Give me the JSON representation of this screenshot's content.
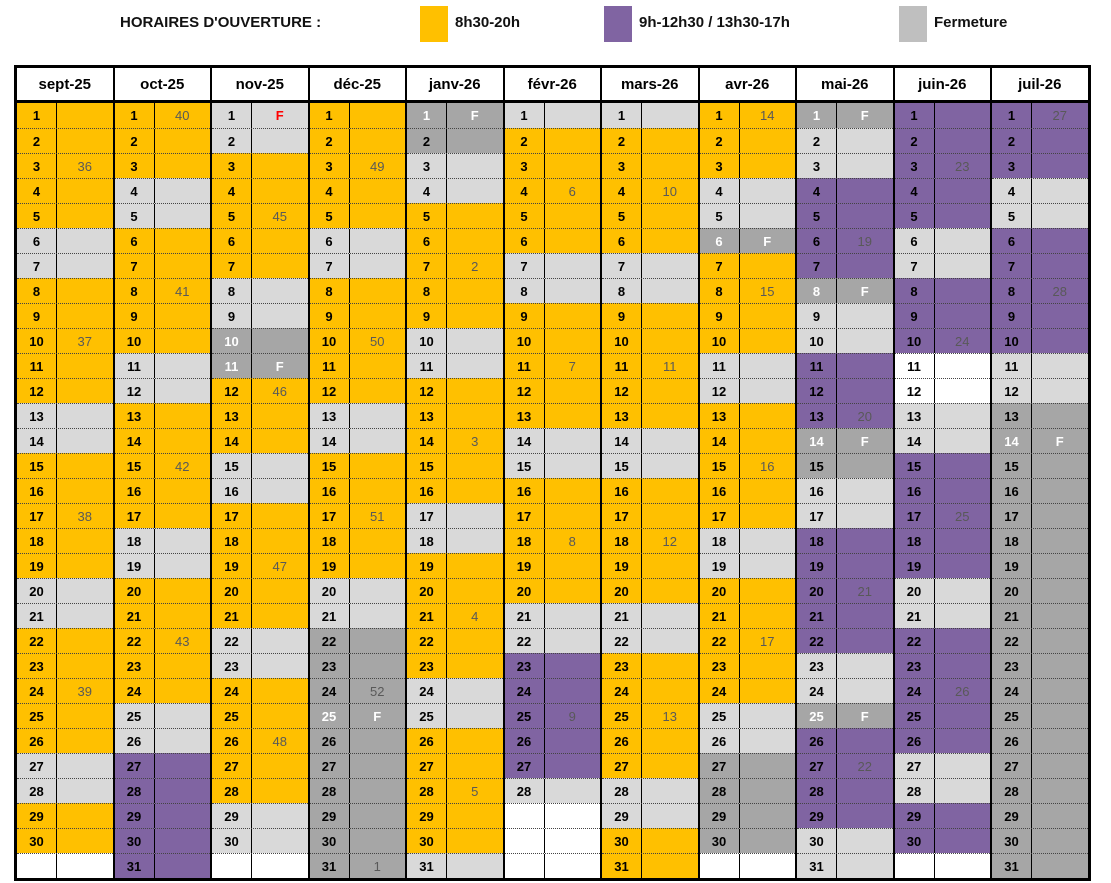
{
  "legend": {
    "title": "HORAIRES D'OUVERTURE :",
    "items": [
      {
        "label": "8h30-20h",
        "color_key": "open_full"
      },
      {
        "label": "9h-12h30 / 13h30-17h",
        "color_key": "open_reduced"
      },
      {
        "label": "Fermeture",
        "color_key": "closed"
      }
    ]
  },
  "colors": {
    "open_full": "#FFC000",
    "open_reduced": "#8064A2",
    "closed_weekend": "#D9D9D9",
    "closed_dark": "#A6A6A6",
    "empty": "#FFFFFF",
    "holiday_red": "#FF0000",
    "note_gray": "#595959",
    "white_text": "#FFFFFF",
    "black_text": "#000000"
  },
  "bg_map": {
    "o": "#FFC000",
    "p": "#8064A2",
    "g": "#D9D9D9",
    "G": "#A6A6A6",
    "w": "#FFFFFF"
  },
  "months": [
    {
      "label": "sept-25",
      "days": [
        [
          1,
          "o"
        ],
        [
          2,
          "o"
        ],
        [
          3,
          "o",
          "36"
        ],
        [
          4,
          "o"
        ],
        [
          5,
          "o"
        ],
        [
          6,
          "g"
        ],
        [
          7,
          "g"
        ],
        [
          8,
          "o"
        ],
        [
          9,
          "o"
        ],
        [
          10,
          "o",
          "37"
        ],
        [
          11,
          "o"
        ],
        [
          12,
          "o"
        ],
        [
          13,
          "g"
        ],
        [
          14,
          "g"
        ],
        [
          15,
          "o"
        ],
        [
          16,
          "o"
        ],
        [
          17,
          "o",
          "38"
        ],
        [
          18,
          "o"
        ],
        [
          19,
          "o"
        ],
        [
          20,
          "g"
        ],
        [
          21,
          "g"
        ],
        [
          22,
          "o"
        ],
        [
          23,
          "o"
        ],
        [
          24,
          "o",
          "39"
        ],
        [
          25,
          "o"
        ],
        [
          26,
          "o"
        ],
        [
          27,
          "g"
        ],
        [
          28,
          "g"
        ],
        [
          29,
          "o"
        ],
        [
          30,
          "o"
        ],
        [
          "",
          "w"
        ]
      ]
    },
    {
      "label": "oct-25",
      "days": [
        [
          1,
          "o",
          "40"
        ],
        [
          2,
          "o"
        ],
        [
          3,
          "o"
        ],
        [
          4,
          "g"
        ],
        [
          5,
          "g"
        ],
        [
          6,
          "o"
        ],
        [
          7,
          "o"
        ],
        [
          8,
          "o",
          "41"
        ],
        [
          9,
          "o"
        ],
        [
          10,
          "o"
        ],
        [
          11,
          "g"
        ],
        [
          12,
          "g"
        ],
        [
          13,
          "o"
        ],
        [
          14,
          "o"
        ],
        [
          15,
          "o",
          "42"
        ],
        [
          16,
          "o"
        ],
        [
          17,
          "o"
        ],
        [
          18,
          "g"
        ],
        [
          19,
          "g"
        ],
        [
          20,
          "o"
        ],
        [
          21,
          "o"
        ],
        [
          22,
          "o",
          "43"
        ],
        [
          23,
          "o"
        ],
        [
          24,
          "o"
        ],
        [
          25,
          "g"
        ],
        [
          26,
          "g"
        ],
        [
          27,
          "p"
        ],
        [
          28,
          "p"
        ],
        [
          29,
          "p"
        ],
        [
          30,
          "p"
        ],
        [
          31,
          "p"
        ]
      ]
    },
    {
      "label": "nov-25",
      "days": [
        [
          1,
          "g",
          "F",
          "rf"
        ],
        [
          2,
          "g"
        ],
        [
          3,
          "o"
        ],
        [
          4,
          "o"
        ],
        [
          5,
          "o",
          "45"
        ],
        [
          6,
          "o"
        ],
        [
          7,
          "o"
        ],
        [
          8,
          "g"
        ],
        [
          9,
          "g"
        ],
        [
          10,
          "G",
          "",
          "wf"
        ],
        [
          11,
          "G",
          "F",
          "wf"
        ],
        [
          12,
          "o",
          "46"
        ],
        [
          13,
          "o"
        ],
        [
          14,
          "o"
        ],
        [
          15,
          "g"
        ],
        [
          16,
          "g"
        ],
        [
          17,
          "o"
        ],
        [
          18,
          "o"
        ],
        [
          19,
          "o",
          "47"
        ],
        [
          20,
          "o"
        ],
        [
          21,
          "o"
        ],
        [
          22,
          "g"
        ],
        [
          23,
          "g"
        ],
        [
          24,
          "o"
        ],
        [
          25,
          "o"
        ],
        [
          26,
          "o",
          "48"
        ],
        [
          27,
          "o"
        ],
        [
          28,
          "o"
        ],
        [
          29,
          "g"
        ],
        [
          30,
          "g"
        ],
        [
          "",
          "w"
        ]
      ]
    },
    {
      "label": "déc-25",
      "days": [
        [
          1,
          "o"
        ],
        [
          2,
          "o"
        ],
        [
          3,
          "o",
          "49"
        ],
        [
          4,
          "o"
        ],
        [
          5,
          "o"
        ],
        [
          6,
          "g"
        ],
        [
          7,
          "g"
        ],
        [
          8,
          "o"
        ],
        [
          9,
          "o"
        ],
        [
          10,
          "o",
          "50"
        ],
        [
          11,
          "o"
        ],
        [
          12,
          "o"
        ],
        [
          13,
          "g"
        ],
        [
          14,
          "g"
        ],
        [
          15,
          "o"
        ],
        [
          16,
          "o"
        ],
        [
          17,
          "o",
          "51"
        ],
        [
          18,
          "o"
        ],
        [
          19,
          "o"
        ],
        [
          20,
          "g"
        ],
        [
          21,
          "g"
        ],
        [
          22,
          "G"
        ],
        [
          23,
          "G"
        ],
        [
          24,
          "G",
          "52"
        ],
        [
          25,
          "G",
          "F",
          "wf"
        ],
        [
          26,
          "G"
        ],
        [
          27,
          "G"
        ],
        [
          28,
          "G"
        ],
        [
          29,
          "G"
        ],
        [
          30,
          "G"
        ],
        [
          31,
          "G",
          "1"
        ]
      ]
    },
    {
      "label": "janv-26",
      "days": [
        [
          1,
          "G",
          "F",
          "wf"
        ],
        [
          2,
          "G"
        ],
        [
          3,
          "g"
        ],
        [
          4,
          "g"
        ],
        [
          5,
          "o"
        ],
        [
          6,
          "o"
        ],
        [
          7,
          "o",
          "2"
        ],
        [
          8,
          "o"
        ],
        [
          9,
          "o"
        ],
        [
          10,
          "g"
        ],
        [
          11,
          "g"
        ],
        [
          12,
          "o"
        ],
        [
          13,
          "o"
        ],
        [
          14,
          "o",
          "3"
        ],
        [
          15,
          "o"
        ],
        [
          16,
          "o"
        ],
        [
          17,
          "g"
        ],
        [
          18,
          "g"
        ],
        [
          19,
          "o"
        ],
        [
          20,
          "o"
        ],
        [
          21,
          "o",
          "4"
        ],
        [
          22,
          "o"
        ],
        [
          23,
          "o"
        ],
        [
          24,
          "g"
        ],
        [
          25,
          "g"
        ],
        [
          26,
          "o"
        ],
        [
          27,
          "o"
        ],
        [
          28,
          "o",
          "5"
        ],
        [
          29,
          "o"
        ],
        [
          30,
          "o"
        ],
        [
          31,
          "g"
        ]
      ]
    },
    {
      "label": "févr-26",
      "days": [
        [
          1,
          "g"
        ],
        [
          2,
          "o"
        ],
        [
          3,
          "o"
        ],
        [
          4,
          "o",
          "6"
        ],
        [
          5,
          "o"
        ],
        [
          6,
          "o"
        ],
        [
          7,
          "g"
        ],
        [
          8,
          "g"
        ],
        [
          9,
          "o"
        ],
        [
          10,
          "o"
        ],
        [
          11,
          "o",
          "7"
        ],
        [
          12,
          "o"
        ],
        [
          13,
          "o"
        ],
        [
          14,
          "g"
        ],
        [
          15,
          "g"
        ],
        [
          16,
          "o"
        ],
        [
          17,
          "o"
        ],
        [
          18,
          "o",
          "8"
        ],
        [
          19,
          "o"
        ],
        [
          20,
          "o"
        ],
        [
          21,
          "g"
        ],
        [
          22,
          "g"
        ],
        [
          23,
          "p"
        ],
        [
          24,
          "p"
        ],
        [
          25,
          "p",
          "9"
        ],
        [
          26,
          "p"
        ],
        [
          27,
          "p"
        ],
        [
          28,
          "g"
        ],
        [
          "",
          "w"
        ],
        [
          "",
          "w"
        ],
        [
          "",
          "w"
        ]
      ]
    },
    {
      "label": "mars-26",
      "days": [
        [
          1,
          "g"
        ],
        [
          2,
          "o"
        ],
        [
          3,
          "o"
        ],
        [
          4,
          "o",
          "10"
        ],
        [
          5,
          "o"
        ],
        [
          6,
          "o"
        ],
        [
          7,
          "g"
        ],
        [
          8,
          "g"
        ],
        [
          9,
          "o"
        ],
        [
          10,
          "o"
        ],
        [
          11,
          "o",
          "11"
        ],
        [
          12,
          "o"
        ],
        [
          13,
          "o"
        ],
        [
          14,
          "g"
        ],
        [
          15,
          "g"
        ],
        [
          16,
          "o"
        ],
        [
          17,
          "o"
        ],
        [
          18,
          "o",
          "12"
        ],
        [
          19,
          "o"
        ],
        [
          20,
          "o"
        ],
        [
          21,
          "g"
        ],
        [
          22,
          "g"
        ],
        [
          23,
          "o"
        ],
        [
          24,
          "o"
        ],
        [
          25,
          "o",
          "13"
        ],
        [
          26,
          "o"
        ],
        [
          27,
          "o"
        ],
        [
          28,
          "g"
        ],
        [
          29,
          "g"
        ],
        [
          30,
          "o"
        ],
        [
          31,
          "o"
        ]
      ]
    },
    {
      "label": "avr-26",
      "days": [
        [
          1,
          "o",
          "14"
        ],
        [
          2,
          "o"
        ],
        [
          3,
          "o"
        ],
        [
          4,
          "g"
        ],
        [
          5,
          "g"
        ],
        [
          6,
          "G",
          "F",
          "wf"
        ],
        [
          7,
          "o"
        ],
        [
          8,
          "o",
          "15"
        ],
        [
          9,
          "o"
        ],
        [
          10,
          "o"
        ],
        [
          11,
          "g"
        ],
        [
          12,
          "g"
        ],
        [
          13,
          "o"
        ],
        [
          14,
          "o"
        ],
        [
          15,
          "o",
          "16"
        ],
        [
          16,
          "o"
        ],
        [
          17,
          "o"
        ],
        [
          18,
          "g"
        ],
        [
          19,
          "g"
        ],
        [
          20,
          "o"
        ],
        [
          21,
          "o"
        ],
        [
          22,
          "o",
          "17"
        ],
        [
          23,
          "o"
        ],
        [
          24,
          "o"
        ],
        [
          25,
          "g"
        ],
        [
          26,
          "g"
        ],
        [
          27,
          "G"
        ],
        [
          28,
          "G"
        ],
        [
          29,
          "G"
        ],
        [
          30,
          "G"
        ],
        [
          "",
          "w"
        ]
      ]
    },
    {
      "label": "mai-26",
      "days": [
        [
          1,
          "G",
          "F",
          "wf"
        ],
        [
          2,
          "g"
        ],
        [
          3,
          "g"
        ],
        [
          4,
          "p"
        ],
        [
          5,
          "p"
        ],
        [
          6,
          "p",
          "19"
        ],
        [
          7,
          "p"
        ],
        [
          8,
          "G",
          "F",
          "wf"
        ],
        [
          9,
          "g"
        ],
        [
          10,
          "g"
        ],
        [
          11,
          "p"
        ],
        [
          12,
          "p"
        ],
        [
          13,
          "p",
          "20"
        ],
        [
          14,
          "G",
          "F",
          "wf"
        ],
        [
          15,
          "G"
        ],
        [
          16,
          "g"
        ],
        [
          17,
          "g"
        ],
        [
          18,
          "p"
        ],
        [
          19,
          "p"
        ],
        [
          20,
          "p",
          "21"
        ],
        [
          21,
          "p"
        ],
        [
          22,
          "p"
        ],
        [
          23,
          "g"
        ],
        [
          24,
          "g"
        ],
        [
          25,
          "G",
          "F",
          "wf"
        ],
        [
          26,
          "p"
        ],
        [
          27,
          "p",
          "22"
        ],
        [
          28,
          "p"
        ],
        [
          29,
          "p"
        ],
        [
          30,
          "g"
        ],
        [
          31,
          "g"
        ]
      ]
    },
    {
      "label": "juin-26",
      "days": [
        [
          1,
          "p"
        ],
        [
          2,
          "p"
        ],
        [
          3,
          "p",
          "23"
        ],
        [
          4,
          "p"
        ],
        [
          5,
          "p"
        ],
        [
          6,
          "g"
        ],
        [
          7,
          "g"
        ],
        [
          8,
          "p"
        ],
        [
          9,
          "p"
        ],
        [
          10,
          "p",
          "24"
        ],
        [
          11,
          "w"
        ],
        [
          12,
          "w"
        ],
        [
          13,
          "g"
        ],
        [
          14,
          "g"
        ],
        [
          15,
          "p"
        ],
        [
          16,
          "p"
        ],
        [
          17,
          "p",
          "25"
        ],
        [
          18,
          "p"
        ],
        [
          19,
          "p"
        ],
        [
          20,
          "g"
        ],
        [
          21,
          "g"
        ],
        [
          22,
          "p"
        ],
        [
          23,
          "p"
        ],
        [
          24,
          "p",
          "26"
        ],
        [
          25,
          "p"
        ],
        [
          26,
          "p"
        ],
        [
          27,
          "g"
        ],
        [
          28,
          "g"
        ],
        [
          29,
          "p"
        ],
        [
          30,
          "p"
        ],
        [
          "",
          "w"
        ]
      ]
    },
    {
      "label": "juil-26",
      "days": [
        [
          1,
          "p",
          "27"
        ],
        [
          2,
          "p"
        ],
        [
          3,
          "p"
        ],
        [
          4,
          "g"
        ],
        [
          5,
          "g"
        ],
        [
          6,
          "p"
        ],
        [
          7,
          "p"
        ],
        [
          8,
          "p",
          "28"
        ],
        [
          9,
          "p"
        ],
        [
          10,
          "p"
        ],
        [
          11,
          "g"
        ],
        [
          12,
          "g"
        ],
        [
          13,
          "G"
        ],
        [
          14,
          "G",
          "F",
          "wf"
        ],
        [
          15,
          "G"
        ],
        [
          16,
          "G"
        ],
        [
          17,
          "G"
        ],
        [
          18,
          "G"
        ],
        [
          19,
          "G"
        ],
        [
          20,
          "G"
        ],
        [
          21,
          "G"
        ],
        [
          22,
          "G"
        ],
        [
          23,
          "G"
        ],
        [
          24,
          "G"
        ],
        [
          25,
          "G"
        ],
        [
          26,
          "G"
        ],
        [
          27,
          "G"
        ],
        [
          28,
          "G"
        ],
        [
          29,
          "G"
        ],
        [
          30,
          "G"
        ],
        [
          31,
          "G"
        ]
      ]
    }
  ]
}
